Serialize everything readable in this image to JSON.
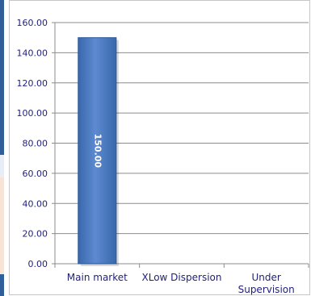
{
  "chart_data": {
    "type": "bar",
    "categories": [
      "Main market",
      "XLow Dispersion",
      "Under Supervision"
    ],
    "category_lines": [
      [
        "Main market"
      ],
      [
        "XLow Dispersion"
      ],
      [
        "Under",
        "Supervision"
      ]
    ],
    "values": [
      150.0,
      0,
      0
    ],
    "data_labels": [
      "150.00",
      "",
      ""
    ],
    "ylim": [
      0,
      160
    ],
    "yticks": [
      0,
      20,
      40,
      60,
      80,
      100,
      120,
      140,
      160
    ],
    "ytick_labels": [
      "0.00",
      "20.00",
      "40.00",
      "60.00",
      "80.00",
      "100.00",
      "120.00",
      "140.00",
      "160.00"
    ],
    "grid": true,
    "legend": "none",
    "colors": {
      "bar": "#4f7fc4",
      "bar_edge": "#2b5797",
      "grid": "#8c8c8c",
      "axis_text": "#1f1f7a"
    }
  }
}
